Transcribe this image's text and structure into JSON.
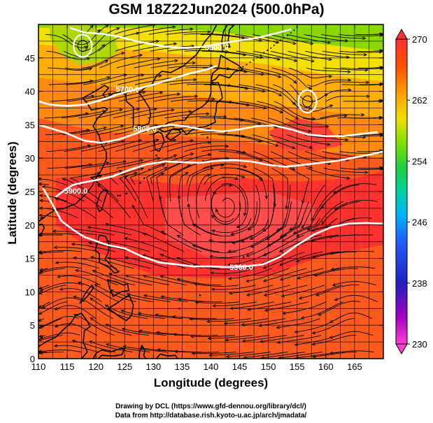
{
  "title": "GSM 18Z22Jun2024 (500.0hPa)",
  "credits": {
    "line1": "Drawing by DCL (https://www.gfd-dennou.org/library/dcl/)",
    "line2": "Data from http://database.rish.kyoto-u.ac.jp/arch/jmadata/"
  },
  "chart_data": {
    "type": "heatmap",
    "title": "GSM 18Z22Jun2024 (500.0hPa)",
    "xlabel": "Longitude (degrees)",
    "ylabel": "Latitude  (degrees)",
    "xlim": [
      110,
      170
    ],
    "ylim": [
      0,
      50
    ],
    "x_ticks": [
      110,
      115,
      120,
      125,
      130,
      135,
      140,
      145,
      150,
      155,
      160,
      165
    ],
    "y_ticks": [
      0,
      5,
      10,
      15,
      20,
      25,
      30,
      35,
      40,
      45
    ],
    "grid": true,
    "colorbar": {
      "min": 230,
      "max": 270,
      "labels": [
        270,
        262,
        254,
        246,
        238,
        230
      ],
      "colors": [
        "#ff40d0",
        "#8000a0",
        "#2020c0",
        "#2060ff",
        "#00b0ff",
        "#00d0a0",
        "#20d040",
        "#80e000",
        "#f0e000",
        "#ffa000",
        "#ff5000",
        "#ff3030"
      ]
    },
    "contours": [
      {
        "label": "5600.0",
        "lon": 141,
        "lat": 46.5,
        "path": [
          [
            115.5,
            49.5
          ],
          [
            118,
            48.8
          ],
          [
            121,
            48.6
          ],
          [
            124,
            48.2
          ],
          [
            127,
            47.5
          ],
          [
            130,
            47.0
          ],
          [
            133,
            46.6
          ],
          [
            136,
            46.5
          ],
          [
            139,
            46.7
          ],
          [
            142,
            47.2
          ],
          [
            145,
            47.6
          ],
          [
            148,
            48.0
          ],
          [
            151,
            48.6
          ],
          [
            154,
            49.3
          ]
        ]
      },
      {
        "label": "5700.0",
        "lon": 125.5,
        "lat": 40.2,
        "path": [
          [
            110,
            38.5
          ],
          [
            112,
            38.0
          ],
          [
            115,
            37.8
          ],
          [
            118,
            38.0
          ],
          [
            121,
            38.7
          ],
          [
            124,
            39.6
          ],
          [
            127,
            40.3
          ],
          [
            130,
            41.0
          ],
          [
            133,
            41.8
          ],
          [
            136,
            42.6
          ],
          [
            139,
            43.2
          ],
          [
            141,
            43.8
          ]
        ]
      },
      {
        "label": "5800.0",
        "lon": 128.5,
        "lat": 34.3,
        "path": [
          [
            110,
            35.0
          ],
          [
            112,
            34.5
          ],
          [
            115,
            33.7
          ],
          [
            118,
            32.6
          ],
          [
            121,
            32.3
          ],
          [
            124,
            32.8
          ],
          [
            127,
            33.7
          ],
          [
            130,
            34.6
          ],
          [
            133,
            35.0
          ],
          [
            136,
            34.7
          ],
          [
            139,
            34.2
          ],
          [
            142,
            34.0
          ],
          [
            145,
            34.3
          ],
          [
            148,
            34.8
          ],
          [
            151,
            34.9
          ],
          [
            154,
            34.3
          ],
          [
            157,
            33.5
          ],
          [
            160,
            33.3
          ],
          [
            163,
            33.3
          ],
          [
            166,
            33.6
          ],
          [
            169,
            33.9
          ]
        ]
      },
      {
        "label": "5900.0",
        "lon": 116.5,
        "lat": 25.0,
        "path": [
          [
            113,
            24.2
          ],
          [
            114.5,
            25.2
          ],
          [
            116,
            26.0
          ],
          [
            118,
            26.4
          ],
          [
            120,
            26.7
          ],
          [
            123,
            27.3
          ],
          [
            126,
            28.3
          ],
          [
            129,
            29.1
          ],
          [
            132,
            29.5
          ],
          [
            135,
            29.4
          ],
          [
            138,
            29.3
          ],
          [
            141,
            29.6
          ],
          [
            144,
            29.7
          ],
          [
            147,
            29.5
          ],
          [
            150,
            29.0
          ],
          [
            153,
            28.7
          ],
          [
            156,
            29.0
          ],
          [
            159,
            29.3
          ],
          [
            162,
            29.6
          ],
          [
            165,
            30.1
          ],
          [
            168,
            30.6
          ],
          [
            170,
            31.0
          ]
        ]
      },
      {
        "label": "5900.0",
        "lon": 145.3,
        "lat": 13.6,
        "path": [
          [
            110.8,
            25.5
          ],
          [
            112.5,
            23.0
          ],
          [
            114,
            20.6
          ],
          [
            116,
            19.3
          ],
          [
            118,
            18.2
          ],
          [
            120,
            17.6
          ],
          [
            122,
            17.0
          ],
          [
            125,
            16.5
          ],
          [
            128,
            15.3
          ],
          [
            131,
            14.4
          ],
          [
            134,
            14.1
          ],
          [
            137,
            13.8
          ],
          [
            140,
            13.8
          ],
          [
            143,
            13.7
          ],
          [
            146,
            13.8
          ],
          [
            149,
            14.1
          ],
          [
            152,
            15.2
          ],
          [
            155,
            17.0
          ],
          [
            158,
            18.6
          ],
          [
            161,
            19.7
          ],
          [
            164,
            20.2
          ],
          [
            167,
            20.3
          ],
          [
            170,
            20.2
          ]
        ]
      }
    ],
    "lows": [
      {
        "lon": 117.7,
        "lat": 46.8
      },
      {
        "lon": 156.8,
        "lat": 38.5
      }
    ]
  }
}
